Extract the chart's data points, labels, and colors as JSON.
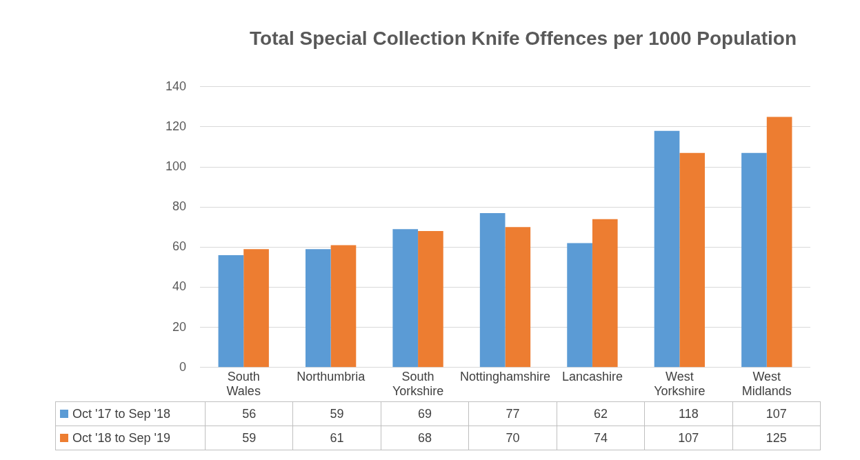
{
  "chart_data": {
    "type": "bar",
    "title": "Total Special Collection Knife Offences per 1000 Population",
    "categories": [
      "South Wales",
      "Northumbria",
      "South Yorkshire",
      "Nottinghamshire",
      "Lancashire",
      "West Yorkshire",
      "West Midlands"
    ],
    "series": [
      {
        "name": "Oct '17 to Sep '18",
        "color": "#5b9bd5",
        "values": [
          56,
          59,
          69,
          77,
          62,
          118,
          107
        ]
      },
      {
        "name": "Oct '18 to Sep '19",
        "color": "#ed7d31",
        "values": [
          59,
          61,
          68,
          70,
          74,
          107,
          125
        ]
      }
    ],
    "ylim": [
      0,
      140
    ],
    "yticks": [
      0,
      20,
      40,
      60,
      80,
      100,
      120,
      140
    ],
    "grid": "y",
    "legend": "bottom",
    "data_labels": true
  }
}
